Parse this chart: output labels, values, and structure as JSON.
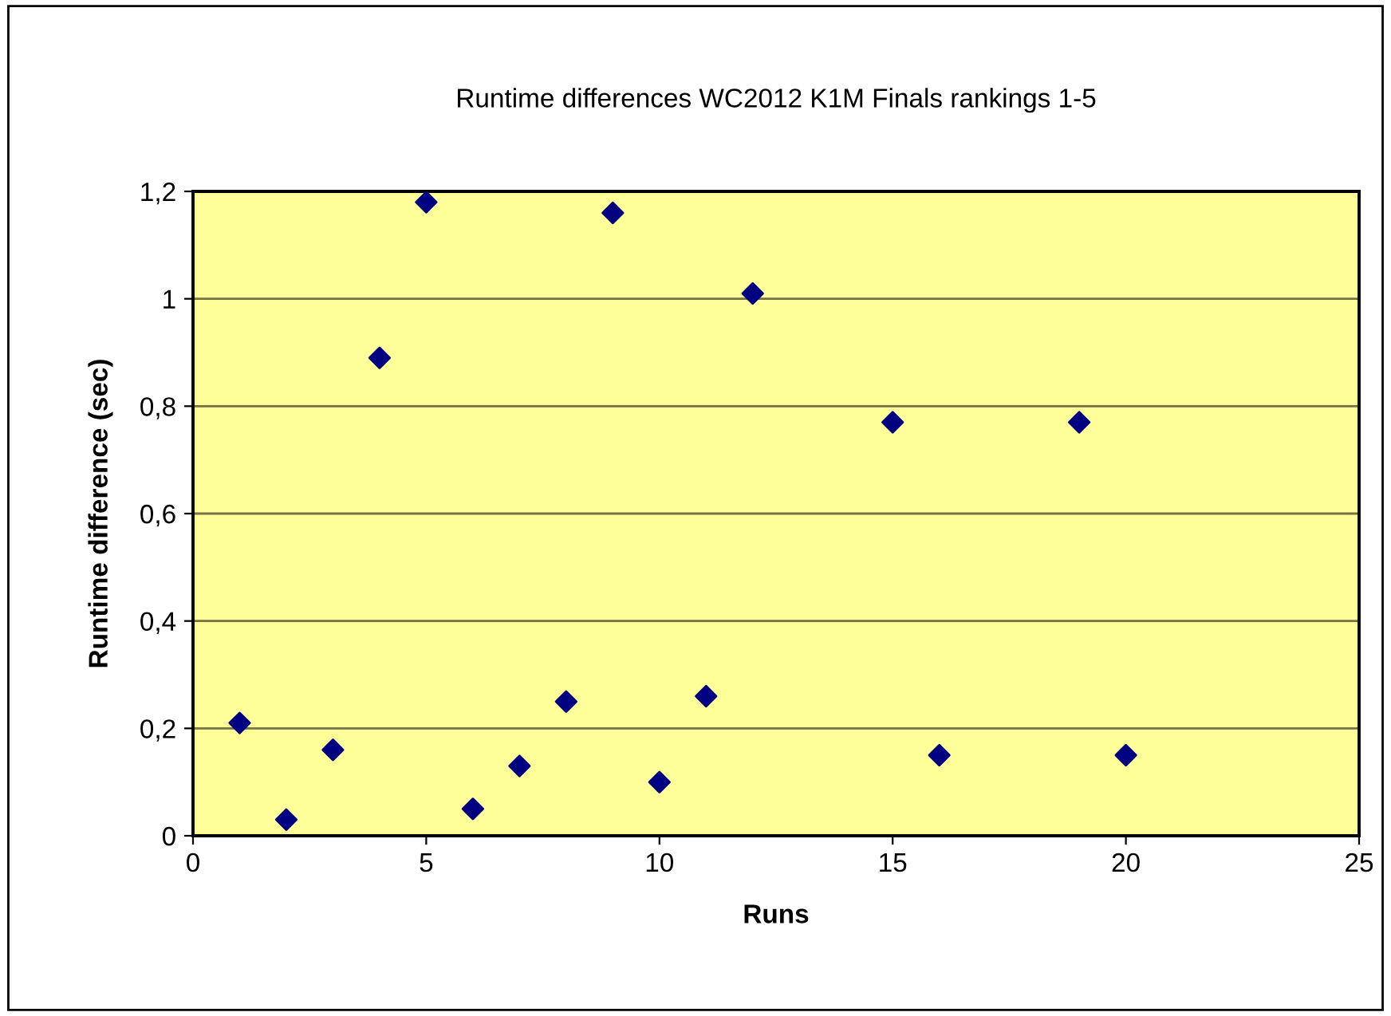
{
  "chart_data": {
    "type": "scatter",
    "title": "Runtime differences WC2012 K1M Finals rankings 1-5",
    "xlabel": "Runs",
    "ylabel": "Runtime difference (sec)",
    "series": [
      {
        "color": "#000080",
        "x": [
          1,
          2,
          3,
          4,
          5,
          6,
          7,
          8,
          9,
          10,
          11,
          12,
          15,
          16,
          19,
          20
        ],
        "values": [
          0.21,
          0.03,
          0.16,
          0.89,
          1.18,
          0.05,
          0.13,
          0.25,
          1.16,
          0.1,
          0.26,
          1.01,
          0.77,
          0.15,
          0.77,
          0.15
        ]
      }
    ],
    "xlim": [
      0,
      25
    ],
    "xticks": [
      0,
      5,
      10,
      15,
      20,
      25
    ],
    "ylim": [
      0,
      1.2
    ],
    "yticks": [
      0,
      {
        "value": 0.2,
        "label": "0,2"
      },
      {
        "value": 0.4,
        "label": "0,4"
      },
      {
        "value": 0.6,
        "label": "0,6"
      },
      {
        "value": 0.8,
        "label": "0,8"
      },
      1,
      {
        "value": 1.2,
        "label": "1,2"
      }
    ],
    "grid": "y",
    "marker": "diamond",
    "legend": false
  }
}
